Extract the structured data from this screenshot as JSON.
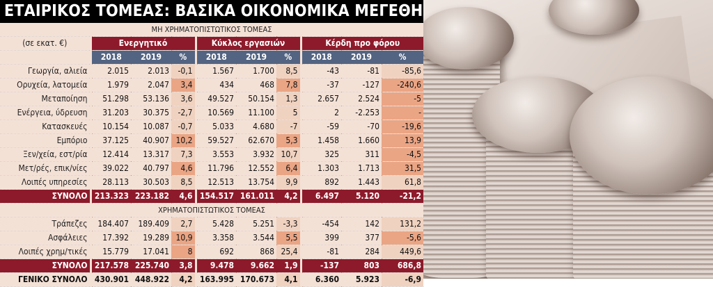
{
  "title": "ΕΤΑΙΡΙΚΟΣ ΤΟΜΕΑΣ: ΒΑΣΙΚΑ ΟΙΚΟΝΟΜΙΚΑ ΜΕΓΕΘΗ ΑΝΑ ΤΟΜΕΑ",
  "unit": "(σε εκατ. €)",
  "section_nonfin": "ΜΗ ΧΡΗΜΑΤΟΠΙΣΤΩΤΙΚΟΣ ΤΟΜΕΑΣ",
  "section_fin": "ΧΡΗΜΑΤΟΠΙΣΤΩΤΙΚΟΣ ΤΟΜΕΑΣ",
  "groups": [
    "Ενεργητικό",
    "Κύκλος εργασιών",
    "Κέρδη προ φόρου"
  ],
  "year_headers": [
    "2018",
    "2019",
    "%",
    "2018",
    "2019",
    "%",
    "2018",
    "2019",
    "%"
  ],
  "nonfin_rows": [
    {
      "label": "Γεωργία, αλιεία",
      "v": [
        "2.015",
        "2.013",
        "-0,1",
        "1.567",
        "1.700",
        "8,5",
        "-43",
        "-81",
        "-85,6"
      ]
    },
    {
      "label": "Ορυχεία, λατομεία",
      "v": [
        "1.979",
        "2.047",
        "3,4",
        "434",
        "468",
        "7,8",
        "-37",
        "-127",
        "-240,6"
      ]
    },
    {
      "label": "Μεταποίηση",
      "v": [
        "51.298",
        "53.136",
        "3,6",
        "49.527",
        "50.154",
        "1,3",
        "2.657",
        "2.524",
        "-5"
      ]
    },
    {
      "label": "Ενέργεια, ύδρευση",
      "v": [
        "31.203",
        "30.375",
        "-2,7",
        "10.569",
        "11.100",
        "5",
        "2",
        "-2.253",
        "-"
      ]
    },
    {
      "label": "Κατασκευές",
      "v": [
        "10.154",
        "10.087",
        "-0,7",
        "5.033",
        "4.680",
        "-7",
        "-59",
        "-70",
        "-19,6"
      ]
    },
    {
      "label": "Εμπόριο",
      "v": [
        "37.125",
        "40.907",
        "10,2",
        "59.527",
        "62.670",
        "5,3",
        "1.458",
        "1.660",
        "13,9"
      ]
    },
    {
      "label": "Ξεν/χεία, εστ/ρία",
      "v": [
        "12.414",
        "13.317",
        "7,3",
        "3.553",
        "3.932",
        "10,7",
        "325",
        "311",
        "-4,5"
      ]
    },
    {
      "label": "Μετ/ρές, επικ/νίες",
      "v": [
        "39.022",
        "40.797",
        "4,6",
        "11.796",
        "12.552",
        "6,4",
        "1.303",
        "1.713",
        "31,5"
      ]
    },
    {
      "label": "Λοιπές υπηρεσίες",
      "v": [
        "28.113",
        "30.503",
        "8,5",
        "12.513",
        "13.754",
        "9,9",
        "892",
        "1.443",
        "61,8"
      ]
    }
  ],
  "nonfin_total": {
    "label": "ΣΥΝΟΛΟ",
    "v": [
      "213.323",
      "223.182",
      "4,6",
      "154.517",
      "161.011",
      "4,2",
      "6.497",
      "5.120",
      "-21,2"
    ]
  },
  "fin_rows": [
    {
      "label": "Τράπεζες",
      "v": [
        "184.407",
        "189.409",
        "2,7",
        "5.428",
        "5.251",
        "-3,3",
        "-454",
        "142",
        "131,2"
      ]
    },
    {
      "label": "Ασφάλειες",
      "v": [
        "17.392",
        "19.289",
        "10,9",
        "3.358",
        "3.544",
        "5,5",
        "399",
        "377",
        "-5,6"
      ]
    },
    {
      "label": "Λοιπές χρημ/τικές",
      "v": [
        "15.779",
        "17.041",
        "8",
        "692",
        "868",
        "25,4",
        "-81",
        "284",
        "449,6"
      ]
    }
  ],
  "fin_total": {
    "label": "ΣΥΝΟΛΟ",
    "v": [
      "217.578",
      "225.740",
      "3,8",
      "9.478",
      "9.662",
      "1,9",
      "-137",
      "803",
      "686,8"
    ]
  },
  "grand_total": {
    "label": "ΓΕΝΙΚΟ ΣΥΝΟΛΟ",
    "v": [
      "430.901",
      "448.922",
      "4,2",
      "163.995",
      "170.673",
      "4,1",
      "6.360",
      "5.923",
      "-6,9"
    ]
  }
}
